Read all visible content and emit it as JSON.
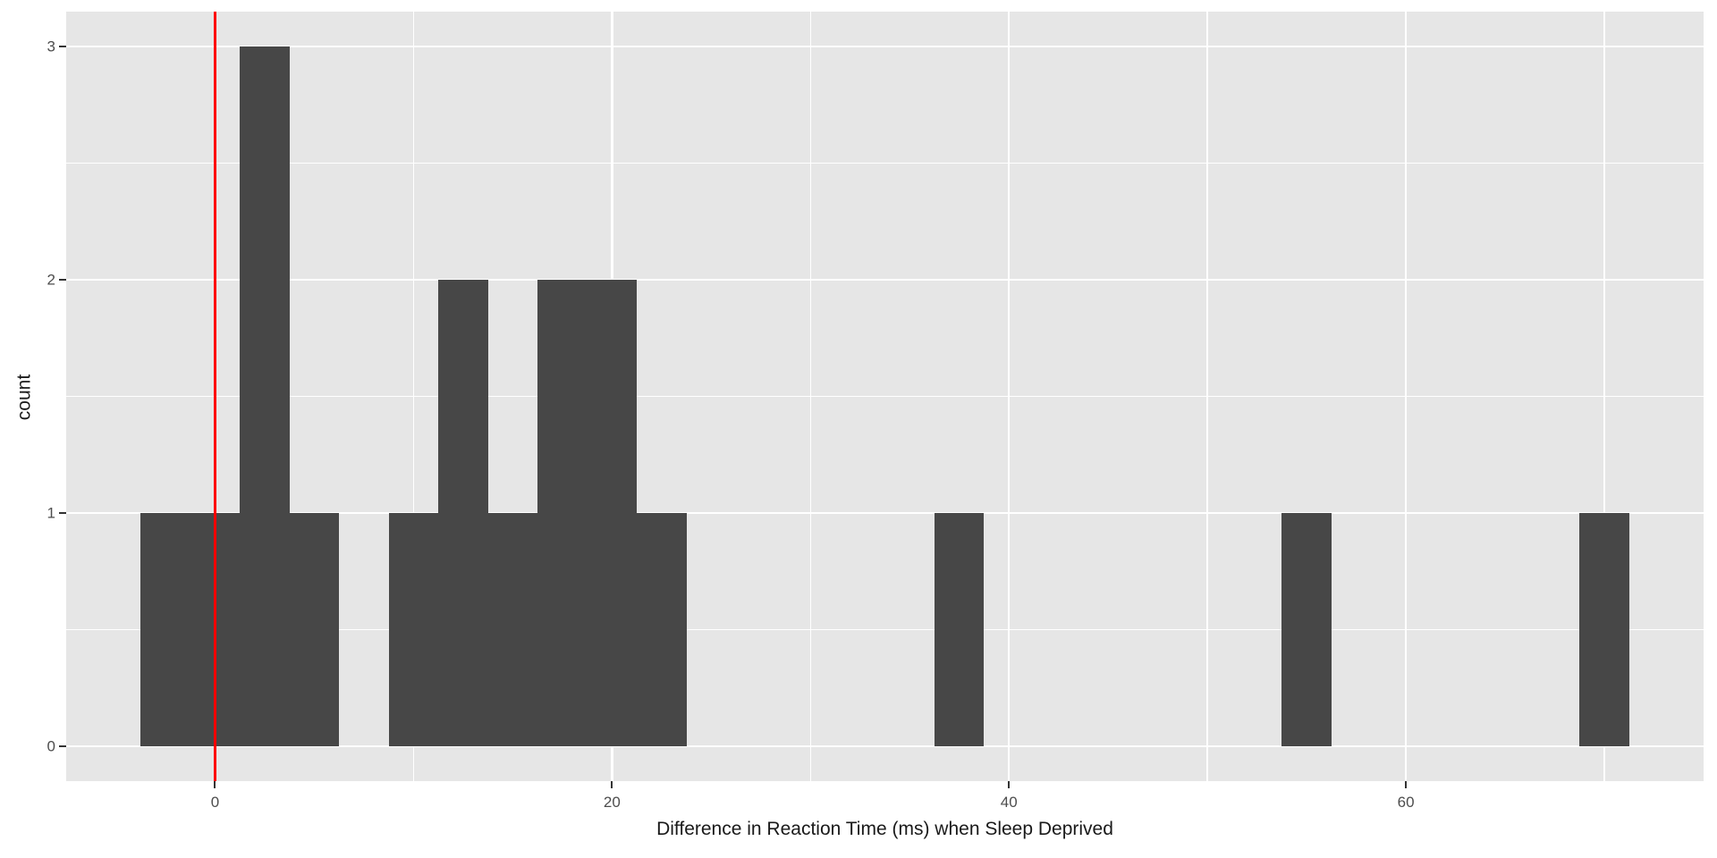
{
  "chart_data": {
    "type": "histogram",
    "title": "",
    "xlabel": "Difference in Reaction Time (ms) when Sleep Deprived",
    "ylabel": "count",
    "binwidth": 2.5,
    "n_total": 18,
    "bins": [
      {
        "center": -2.5,
        "count": 1
      },
      {
        "center": 0,
        "count": 1
      },
      {
        "center": 2.5,
        "count": 3
      },
      {
        "center": 5,
        "count": 1
      },
      {
        "center": 10,
        "count": 1
      },
      {
        "center": 12.5,
        "count": 2
      },
      {
        "center": 15,
        "count": 1
      },
      {
        "center": 17.5,
        "count": 2
      },
      {
        "center": 20,
        "count": 2
      },
      {
        "center": 22.5,
        "count": 1
      },
      {
        "center": 37.5,
        "count": 1
      },
      {
        "center": 55,
        "count": 1
      },
      {
        "center": 70,
        "count": 1
      }
    ],
    "vline": {
      "x": 0,
      "color": "#FF0000"
    },
    "x_axis": {
      "domain": [
        -7.5,
        75
      ],
      "major_ticks": [
        0,
        20,
        40,
        60
      ],
      "tick_labels": [
        "0",
        "20",
        "40",
        "60"
      ],
      "minor_ticks": [
        10,
        30,
        50,
        70
      ]
    },
    "y_axis": {
      "domain": [
        -0.15,
        3.15
      ],
      "major_ticks": [
        0,
        1,
        2,
        3
      ],
      "tick_labels": [
        "0",
        "1",
        "2",
        "3"
      ],
      "minor_ticks": [
        0.5,
        1.5,
        2.5
      ]
    },
    "grid": true,
    "legend": false,
    "style": {
      "page_bg": "#FFFFFF",
      "panel_bg": "#E6E6E6",
      "bar_fill": "#474747",
      "grid_major_color": "#FFFFFF",
      "grid_minor_color": "#FFFFFF",
      "tick_label_color": "#4D4D4D",
      "axis_title_color": "#1A1A1A",
      "tick_mark_color": "#333333"
    }
  }
}
